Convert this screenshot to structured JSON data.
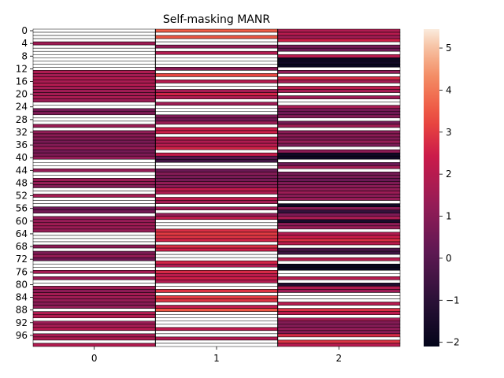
{
  "chart_data": {
    "type": "heatmap",
    "title": "Self-masking MANR",
    "xlabel": "",
    "ylabel": "",
    "columns": [
      "0",
      "1",
      "2"
    ],
    "row_count": 100,
    "y_tick_labels": [
      "0",
      "4",
      "8",
      "12",
      "16",
      "20",
      "24",
      "28",
      "32",
      "36",
      "40",
      "44",
      "48",
      "52",
      "56",
      "60",
      "64",
      "68",
      "72",
      "76",
      "80",
      "84",
      "88",
      "92",
      "96"
    ],
    "colorbar": {
      "min": -2.1,
      "max": 5.45,
      "ticks": [
        "5",
        "4",
        "3",
        "2",
        "1",
        "0",
        "−1",
        "−2"
      ]
    },
    "colormap": "rocket",
    "missing_color": "#ffffff",
    "row_line_color": "#000000",
    "values": [
      [
        null,
        3.6,
        1.8
      ],
      [
        null,
        null,
        2.0
      ],
      [
        null,
        3.5,
        1.5
      ],
      [
        null,
        null,
        2.5
      ],
      [
        1.5,
        null,
        null
      ],
      [
        null,
        1.2,
        0.6
      ],
      [
        null,
        null,
        0.5
      ],
      [
        null,
        1.9,
        null
      ],
      [
        null,
        null,
        2.0
      ],
      [
        null,
        null,
        -1.8
      ],
      [
        null,
        null,
        -1.7
      ],
      [
        null,
        null,
        -1.9
      ],
      [
        null,
        1.0,
        null
      ],
      [
        1.8,
        null,
        1.2
      ],
      [
        1.6,
        3.2,
        null
      ],
      [
        1.9,
        null,
        2.7
      ],
      [
        1.7,
        2.0,
        1.6
      ],
      [
        1.9,
        null,
        null
      ],
      [
        1.6,
        null,
        2.1
      ],
      [
        1.5,
        1.6,
        1.6
      ],
      [
        1.6,
        2.6,
        null
      ],
      [
        1.7,
        1.8,
        1.4
      ],
      [
        1.4,
        null,
        null
      ],
      [
        null,
        1.5,
        null
      ],
      [
        null,
        null,
        1.6
      ],
      [
        0.6,
        null,
        0.6
      ],
      [
        0.8,
        null,
        0.5
      ],
      [
        null,
        0.8,
        0.9
      ],
      [
        null,
        0.5,
        null
      ],
      [
        null,
        1.4,
        0.6
      ],
      [
        1.4,
        null,
        1.5
      ],
      [
        null,
        2.4,
        null
      ],
      [
        1.2,
        2.5,
        1.0
      ],
      [
        1.1,
        null,
        1.1
      ],
      [
        1.0,
        2.2,
        0.9
      ],
      [
        0.7,
        1.8,
        1.3
      ],
      [
        0.9,
        2.0,
        0.7
      ],
      [
        1.3,
        2.6,
        null
      ],
      [
        0.6,
        null,
        1.1
      ],
      [
        0.8,
        2.3,
        -1.7
      ],
      [
        1.2,
        0.0,
        -1.8
      ],
      [
        null,
        -0.5,
        null
      ],
      [
        null,
        null,
        0.4
      ],
      [
        null,
        null,
        1.5
      ],
      [
        1.3,
        0.4,
        null
      ],
      [
        null,
        0.9,
        0.6
      ],
      [
        null,
        0.7,
        0.7
      ],
      [
        1.4,
        0.6,
        0.4
      ],
      [
        1.3,
        1.2,
        0.8
      ],
      [
        0.9,
        1.0,
        1.0
      ],
      [
        null,
        2.2,
        1.2
      ],
      [
        null,
        1.8,
        1.4
      ],
      [
        1.6,
        null,
        1.0
      ],
      [
        null,
        2.1,
        1.3
      ],
      [
        null,
        1.6,
        null
      ],
      [
        null,
        null,
        -1.7
      ],
      [
        0.4,
        1.5,
        1.0
      ],
      [
        0.6,
        null,
        -0.8
      ],
      [
        null,
        1.2,
        0.8
      ],
      [
        1.2,
        2.1,
        1.7
      ],
      [
        1.3,
        null,
        -1.5
      ],
      [
        1.5,
        null,
        1.1
      ],
      [
        1.4,
        null,
        1.3
      ],
      [
        1.3,
        2.8,
        null
      ],
      [
        null,
        3.0,
        1.9
      ],
      [
        null,
        2.9,
        2.4
      ],
      [
        null,
        2.6,
        2.8
      ],
      [
        null,
        null,
        2.1
      ],
      [
        1.1,
        2.8,
        null
      ],
      [
        null,
        2.5,
        -0.3
      ],
      [
        0.8,
        null,
        -0.6
      ],
      [
        1.3,
        null,
        null
      ],
      [
        0.5,
        null,
        2.0
      ],
      [
        null,
        2.6,
        null
      ],
      [
        null,
        1.8,
        -2.0
      ],
      [
        null,
        null,
        -1.9
      ],
      [
        1.6,
        2.7,
        null
      ],
      [
        null,
        2.1,
        null
      ],
      [
        1.4,
        2.5,
        2.0
      ],
      [
        null,
        1.9,
        null
      ],
      [
        null,
        null,
        -1.3
      ],
      [
        1.5,
        null,
        1.8
      ],
      [
        1.1,
        2.9,
        1.4
      ],
      [
        1.6,
        null,
        null
      ],
      [
        1.5,
        3.0,
        null
      ],
      [
        1.3,
        2.9,
        null
      ],
      [
        1.0,
        null,
        2.0
      ],
      [
        1.2,
        2.2,
        null
      ],
      [
        null,
        3.5,
        2.8
      ],
      [
        1.8,
        null,
        2.1
      ],
      [
        1.9,
        null,
        null
      ],
      [
        null,
        null,
        1.6
      ],
      [
        1.4,
        null,
        0.9
      ],
      [
        1.6,
        null,
        0.9
      ],
      [
        1.9,
        2.1,
        1.2
      ],
      [
        null,
        null,
        1.0
      ],
      [
        1.7,
        null,
        2.7
      ],
      [
        1.8,
        1.9,
        null
      ],
      [
        null,
        null,
        2.9
      ],
      [
        1.9,
        null,
        2.0
      ]
    ]
  }
}
